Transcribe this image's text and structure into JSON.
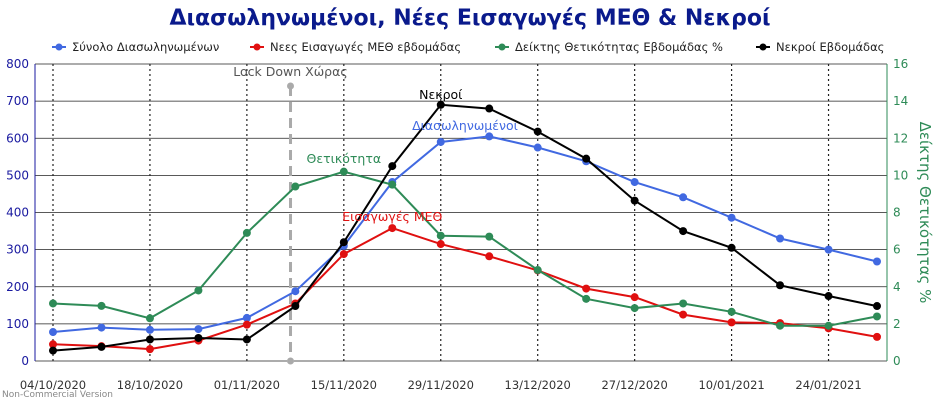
{
  "chart_data": {
    "type": "line",
    "title": "Διασωληνωμένοι, Νέες Εισαγωγές ΜΕΘ & Νεκροί",
    "x": [
      "04/10/2020",
      "11/10/2020",
      "18/10/2020",
      "25/10/2020",
      "01/11/2020",
      "08/11/2020",
      "15/11/2020",
      "22/11/2020",
      "29/11/2020",
      "06/12/2020",
      "13/12/2020",
      "20/12/2020",
      "27/12/2020",
      "03/01/2021",
      "10/01/2021",
      "17/01/2021",
      "24/01/2021",
      "31/01/2021"
    ],
    "x_tick_labels": [
      "04/10/2020",
      "18/10/2020",
      "01/11/2020",
      "15/11/2020",
      "29/11/2020",
      "13/12/2020",
      "27/12/2020",
      "10/01/2021",
      "24/01/2021"
    ],
    "y_left": {
      "min": 0,
      "max": 800,
      "ticks": [
        0,
        100,
        200,
        300,
        400,
        500,
        600,
        700,
        800
      ]
    },
    "y_right": {
      "min": 0,
      "max": 16,
      "ticks": [
        0,
        2,
        4,
        6,
        8,
        10,
        12,
        14,
        16
      ],
      "label": "Δείκτης Θετικότητας %"
    },
    "grid": true,
    "legend_position": "top",
    "series": [
      {
        "name": "Σύνολο Διασωληνωμένων",
        "color": "#4169e1",
        "axis": "left",
        "values": [
          78,
          90,
          84,
          86,
          116,
          188,
          310,
          482,
          590,
          605,
          575,
          538,
          482,
          441,
          386,
          330,
          300,
          268
        ]
      },
      {
        "name": "Νεες Εισαγωγές ΜΕΘ εβδομάδας",
        "color": "#e01010",
        "axis": "left",
        "values": [
          45,
          40,
          32,
          55,
          98,
          155,
          288,
          358,
          315,
          282,
          244,
          195,
          172,
          125,
          104,
          102,
          88,
          65
        ]
      },
      {
        "name": "Δείκτης Θετικότητας Εβδομάδας %",
        "color": "#2e8b57",
        "axis": "right",
        "values": [
          3.1,
          2.97,
          2.3,
          3.8,
          6.9,
          9.4,
          10.2,
          9.5,
          6.75,
          6.7,
          4.9,
          3.35,
          2.85,
          3.1,
          2.65,
          1.9,
          1.9,
          2.4
        ]
      },
      {
        "name": "Νεκροί Εβδομάδας",
        "color": "#000000",
        "axis": "left",
        "values": [
          28,
          38,
          58,
          62,
          58,
          148,
          320,
          525,
          690,
          680,
          618,
          545,
          432,
          350,
          305,
          204,
          175,
          148
        ]
      }
    ],
    "annotations": [
      {
        "text": "Lock Down Χώρας",
        "x": "08/11/2020",
        "color": "#555555"
      },
      {
        "text": "Νεκροί",
        "x": "29/11/2020",
        "color": "#000000"
      },
      {
        "text": "Διασωληνωμένοι",
        "x": "06/12/2020",
        "color": "#4169e1"
      },
      {
        "text": "Θετικότητα",
        "x": "15/11/2020",
        "color": "#2e8b57"
      },
      {
        "text": "Εισαγωγές ΜΕΘ",
        "x": "22/11/2020",
        "color": "#e01010"
      }
    ]
  },
  "watermark": "Non-Commercial Version"
}
